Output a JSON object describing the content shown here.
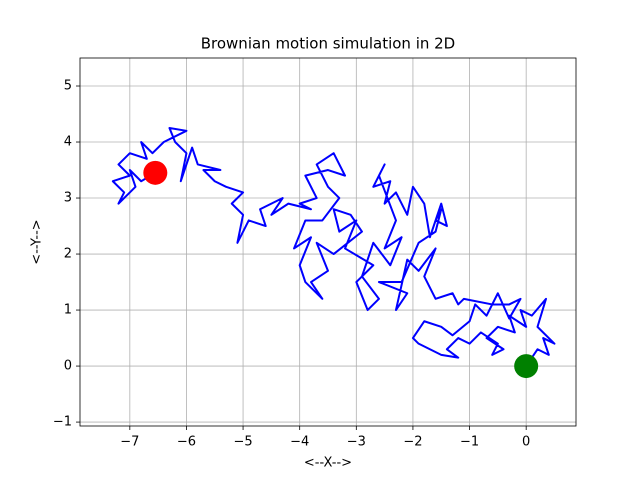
{
  "chart_data": {
    "type": "line",
    "title": "Brownian motion simulation in 2D",
    "xlabel": "<--X-->",
    "ylabel": "<--Y-->",
    "xlim": [
      -7.88,
      0.88
    ],
    "ylim": [
      -1.07,
      5.5
    ],
    "xticks": [
      {
        "value": -7,
        "label": "−7"
      },
      {
        "value": -6,
        "label": "−6"
      },
      {
        "value": -5,
        "label": "−5"
      },
      {
        "value": -4,
        "label": "−4"
      },
      {
        "value": -3,
        "label": "−3"
      },
      {
        "value": -2,
        "label": "−2"
      },
      {
        "value": -1,
        "label": "−1"
      },
      0
    ],
    "yticks": [
      {
        "value": -1,
        "label": "−1"
      },
      0,
      1,
      2,
      3,
      4,
      5
    ],
    "grid": true,
    "path": {
      "color": "#0000ff",
      "x": [
        0,
        0.2,
        0.4,
        0.3,
        0.5,
        0.2,
        0.35,
        0.1,
        -0.1,
        0.0,
        -0.3,
        -0.2,
        -0.5,
        -0.7,
        -0.4,
        -0.6,
        -0.5,
        -0.8,
        -1.0,
        -1.2,
        -1.4,
        -1.2,
        -1.5,
        -1.7,
        -1.9,
        -2.0,
        -1.8,
        -1.5,
        -1.3,
        -1.0,
        -0.9,
        -0.7,
        -0.5,
        -0.3,
        -0.1,
        -0.3,
        -0.6,
        -1.1,
        -1.2,
        -1.3,
        -1.6,
        -1.8,
        -1.6,
        -1.9,
        -2.1,
        -2.3,
        -2.1,
        -2.6,
        -2.2,
        -1.9,
        -1.6,
        -1.5,
        -1.6,
        -1.4,
        -1.5,
        -1.7,
        -1.8,
        -2.0,
        -2.1,
        -2.3,
        -2.5,
        -2.4,
        -2.7,
        -2.5,
        -2.6,
        -2.3,
        -2.5,
        -2.2,
        -2.4,
        -2.7,
        -2.9,
        -2.6,
        -2.8,
        -3.0,
        -2.7,
        -3.2,
        -3.0,
        -3.3,
        -3.4,
        -3.1,
        -2.9,
        -3.4,
        -3.7,
        -3.5,
        -3.8,
        -3.6,
        -3.9,
        -4.0,
        -3.8,
        -4.1,
        -3.9,
        -3.6,
        -3.3,
        -3.5,
        -3.7,
        -3.4,
        -3.2,
        -3.5,
        -3.9,
        -3.7,
        -4.0,
        -3.8,
        -4.2,
        -4.5,
        -4.3,
        -4.7,
        -4.6,
        -4.9,
        -5.0,
        -5.1,
        -5.0,
        -5.2,
        -5.0,
        -5.3,
        -5.5,
        -5.7,
        -5.4,
        -5.8,
        -5.9,
        -6.1,
        -6.0,
        -6.2,
        -6.3,
        -6.0,
        -6.4,
        -6.6,
        -6.8,
        -6.7,
        -7.0,
        -7.2,
        -7.0,
        -7.3,
        -7.1,
        -7.2,
        -6.9,
        -7.0,
        -6.8,
        -6.55
      ],
      "y": [
        0,
        0.3,
        0.2,
        0.5,
        0.4,
        0.7,
        1.2,
        0.9,
        1.0,
        0.7,
        0.9,
        0.6,
        0.7,
        0.5,
        0.3,
        0.2,
        0.4,
        0.6,
        0.4,
        0.5,
        0.3,
        0.15,
        0.2,
        0.3,
        0.4,
        0.5,
        0.8,
        0.7,
        0.55,
        0.8,
        1.1,
        0.9,
        1.3,
        0.85,
        1.2,
        1.1,
        1.1,
        1.2,
        1.1,
        1.3,
        1.2,
        1.6,
        2.1,
        1.7,
        1.9,
        1.0,
        1.3,
        1.5,
        1.5,
        2.2,
        2.4,
        2.8,
        2.6,
        2.5,
        2.9,
        2.3,
        2.9,
        3.2,
        2.7,
        3.1,
        2.9,
        3.3,
        3.2,
        3.6,
        3.4,
        2.6,
        2.1,
        2.3,
        1.8,
        2.2,
        1.6,
        1.2,
        1.0,
        1.5,
        1.8,
        2.1,
        2.6,
        2.4,
        2.8,
        2.7,
        2.4,
        2.0,
        2.2,
        1.7,
        1.5,
        1.2,
        1.5,
        1.8,
        2.3,
        2.1,
        2.6,
        2.6,
        3.0,
        3.2,
        3.6,
        3.8,
        3.4,
        3.5,
        3.4,
        3.0,
        2.9,
        2.8,
        2.9,
        2.7,
        3.0,
        2.8,
        2.5,
        2.6,
        2.4,
        2.2,
        2.7,
        2.9,
        3.1,
        3.2,
        3.3,
        3.5,
        3.5,
        3.6,
        3.9,
        3.3,
        3.8,
        4.0,
        4.25,
        4.2,
        4.0,
        3.8,
        4.0,
        3.7,
        3.8,
        3.6,
        3.4,
        3.3,
        3.1,
        2.9,
        3.2,
        3.5,
        3.3,
        3.45
      ]
    },
    "markers": [
      {
        "color": "#008000",
        "x": 0,
        "y": 0
      },
      {
        "color": "#ff0000",
        "x": -6.55,
        "y": 3.45
      }
    ]
  }
}
